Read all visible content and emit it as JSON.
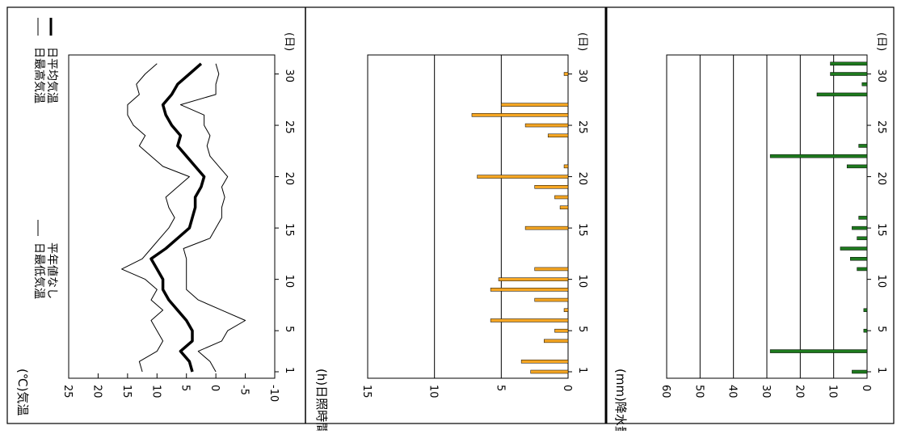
{
  "colors": {
    "frame": "#000000",
    "sunshine_bar": "#f5a623",
    "precip_bar": "#1e7a1e",
    "line": "#000000"
  },
  "chart_data": [
    {
      "type": "line",
      "title": "",
      "panel_label": "(℃)気温",
      "xlabel": "(日)",
      "x_ticks": [
        1,
        5,
        10,
        15,
        20,
        25,
        30
      ],
      "y_ticks": [
        25,
        20,
        15,
        10,
        5,
        0,
        -5,
        -10
      ],
      "y_tick_labels": [
        "25",
        "20",
        "15",
        "10",
        "5",
        "0",
        "-5",
        "-10"
      ],
      "ylim": [
        -10,
        25
      ],
      "xlim": [
        1,
        31
      ],
      "legend": {
        "placement": "top",
        "entries": [
          "日最高気温",
          "日平均気温",
          "日最低気温",
          "平年値なし"
        ]
      },
      "x": [
        1,
        2,
        3,
        4,
        5,
        6,
        7,
        8,
        9,
        10,
        11,
        12,
        13,
        14,
        15,
        16,
        17,
        18,
        19,
        20,
        21,
        22,
        23,
        24,
        25,
        26,
        27,
        28,
        29,
        30,
        31
      ],
      "series": [
        {
          "name": "日最高気温",
          "values": [
            12.5,
            13,
            10,
            9,
            10,
            11,
            9,
            11,
            10,
            12,
            16,
            12.5,
            11,
            9.5,
            8,
            7,
            8,
            8.5,
            6.5,
            4.5,
            9,
            11,
            13,
            12,
            14,
            15,
            15,
            13,
            13.5,
            12,
            10
          ]
        },
        {
          "name": "日平均気温",
          "values": [
            4,
            4.5,
            6,
            4,
            4,
            5,
            6.5,
            8,
            9,
            9,
            10,
            11,
            8.5,
            6.5,
            4.5,
            4,
            3.5,
            3.5,
            2.5,
            2,
            3.5,
            5,
            6.5,
            6,
            7.5,
            8.5,
            9,
            7.5,
            6.5,
            4.5,
            2.5
          ]
        },
        {
          "name": "日最低気温",
          "values": [
            0,
            1,
            3,
            -1,
            -2,
            -5,
            -1,
            3,
            5,
            5,
            5,
            5,
            5.5,
            1,
            0,
            -1,
            -1,
            -1.5,
            -1,
            -2,
            -0.5,
            1,
            1.5,
            1,
            2,
            2,
            6,
            0,
            0,
            -0.5,
            0
          ]
        }
      ]
    },
    {
      "type": "bar",
      "title": "",
      "panel_label": "(h)日照時間",
      "xlabel": "(日)",
      "x_ticks": [
        1,
        5,
        10,
        15,
        20,
        25,
        30
      ],
      "y_ticks": [
        15,
        10,
        5,
        0
      ],
      "y_tick_labels": [
        "15",
        "10",
        "5",
        "0"
      ],
      "ylim": [
        0,
        15
      ],
      "grid": true,
      "categories": [
        1,
        2,
        3,
        4,
        5,
        6,
        7,
        8,
        9,
        10,
        11,
        12,
        13,
        14,
        15,
        16,
        17,
        18,
        19,
        20,
        21,
        22,
        23,
        24,
        25,
        26,
        27,
        28,
        29,
        30,
        31
      ],
      "values": [
        2.8,
        3.5,
        0,
        1.8,
        1.0,
        5.8,
        0.3,
        2.5,
        5.8,
        5.2,
        2.5,
        0,
        0,
        0,
        3.2,
        0,
        0.6,
        1.0,
        2.5,
        6.8,
        0.3,
        0,
        0,
        1.5,
        3.2,
        7.2,
        5.0,
        0,
        0,
        0.3,
        0
      ]
    },
    {
      "type": "bar",
      "title": "",
      "panel_label": "(mm)降水量",
      "xlabel": "(日)",
      "x_ticks": [
        1,
        5,
        10,
        15,
        20,
        25,
        30
      ],
      "y_ticks": [
        60,
        50,
        40,
        30,
        20,
        10,
        0
      ],
      "y_tick_labels": [
        "60",
        "50",
        "40",
        "30",
        "20",
        "10",
        "0"
      ],
      "ylim": [
        0,
        60
      ],
      "grid": true,
      "categories": [
        1,
        2,
        3,
        4,
        5,
        6,
        7,
        8,
        9,
        10,
        11,
        12,
        13,
        14,
        15,
        16,
        17,
        18,
        19,
        20,
        21,
        22,
        23,
        24,
        25,
        26,
        27,
        28,
        29,
        30,
        31
      ],
      "values": [
        4.5,
        0,
        29,
        0,
        1,
        0,
        1,
        0,
        0,
        0,
        3,
        5,
        8,
        3,
        4.5,
        2.5,
        0,
        0,
        0,
        0,
        6,
        29,
        2.5,
        0,
        0,
        0,
        0,
        15,
        1.5,
        11,
        11
      ]
    }
  ]
}
